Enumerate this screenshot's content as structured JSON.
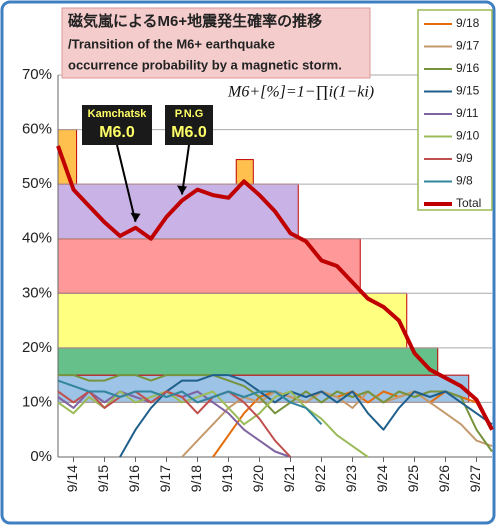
{
  "chart_data": {
    "type": "line",
    "title": "磁気嵐によるM6+地震発生確率の推移",
    "subtitle": [
      "/Transition of the M6+ earthquake",
      "occurrence probability by a magnetic storm."
    ],
    "formula": "M6+[%]=1−∏i(1−ki)",
    "annotations": [
      {
        "label": "Kamchatsk",
        "magnitude": "M6.0",
        "at": 5
      },
      {
        "label": "P.N.G",
        "magnitude": "M6.0",
        "at": 8
      }
    ],
    "categories": [
      null,
      "9/14",
      null,
      "9/15",
      null,
      "9/16",
      null,
      "9/17",
      null,
      "9/18",
      null,
      "9/19",
      null,
      "9/20",
      null,
      "9/21",
      null,
      "9/22",
      null,
      "9/23",
      null,
      "9/24",
      null,
      "9/25",
      null,
      "9/26",
      null,
      "9/27",
      null
    ],
    "ylim": [
      0,
      70
    ],
    "yticks": [
      {
        "value": 0,
        "label": "0%"
      },
      {
        "value": 10,
        "label": "10%"
      },
      {
        "value": 20,
        "label": "20%"
      },
      {
        "value": 30,
        "label": "30%"
      },
      {
        "value": 40,
        "label": "40%"
      },
      {
        "value": 50,
        "label": "50%"
      },
      {
        "value": 60,
        "label": "60%"
      },
      {
        "value": 70,
        "label": "70%"
      }
    ],
    "bands": [
      {
        "top": 15,
        "bottom": 10,
        "end": 26.5,
        "color": "#9dc3e6"
      },
      {
        "top": 20,
        "bottom": 15,
        "end": 24.5,
        "color": "#66c08a"
      },
      {
        "top": 30,
        "bottom": 20,
        "end": 22.5,
        "color": "#ffff80"
      },
      {
        "top": 40,
        "bottom": 30,
        "end": 19.5,
        "color": "#ff9999"
      },
      {
        "top": 50,
        "bottom": 40,
        "end": 15.5,
        "color": "#c9b3e6"
      },
      {
        "top": 60,
        "bottom": 50,
        "end": 1.2,
        "color": "#ffc04d"
      },
      {
        "top": 54.5,
        "bottom": 50,
        "start": 11.5,
        "end": 12.6,
        "color": "#ffc04d"
      }
    ],
    "series": [
      {
        "name": "9/18",
        "color": "#e46c0a",
        "width": 2,
        "values": [
          null,
          null,
          null,
          null,
          null,
          null,
          null,
          null,
          null,
          null,
          0,
          4,
          8,
          11,
          12,
          11,
          10,
          12,
          11,
          12,
          10,
          12,
          11,
          12,
          10,
          12,
          11,
          10,
          5
        ]
      },
      {
        "name": "9/17",
        "color": "#c49a6c",
        "width": 2,
        "values": [
          null,
          null,
          null,
          null,
          null,
          null,
          null,
          null,
          0,
          3,
          6,
          9,
          11,
          10,
          12,
          11,
          10,
          12,
          11,
          9,
          12,
          10,
          11,
          12,
          10,
          8,
          6,
          3,
          2
        ]
      },
      {
        "name": "9/16",
        "color": "#77933c",
        "width": 2,
        "values": [
          15,
          15,
          14,
          14,
          15,
          15,
          14,
          15,
          15,
          15,
          15,
          14,
          13,
          11,
          8,
          10,
          12,
          10,
          12,
          11,
          12,
          10,
          12,
          11,
          12,
          12,
          11,
          5,
          1
        ]
      },
      {
        "name": "9/15",
        "color": "#1f5f8b",
        "width": 2,
        "values": [
          null,
          null,
          null,
          null,
          0,
          5,
          9,
          12,
          14,
          14,
          15,
          15,
          14,
          12,
          10,
          12,
          11,
          12,
          10,
          12,
          8,
          5,
          9,
          12,
          11,
          12,
          10,
          8,
          6
        ]
      },
      {
        "name": "9/11",
        "color": "#8064a2",
        "width": 2,
        "values": [
          11,
          9,
          12,
          10,
          12,
          11,
          10,
          12,
          11,
          12,
          10,
          8,
          5,
          3,
          1,
          0,
          null,
          null,
          null,
          null,
          null,
          null,
          null,
          null,
          null,
          null,
          null,
          null,
          null
        ]
      },
      {
        "name": "9/10",
        "color": "#9bbb59",
        "width": 2,
        "values": [
          10,
          8,
          11,
          9,
          12,
          10,
          11,
          12,
          10,
          11,
          12,
          9,
          6,
          8,
          11,
          12,
          9,
          7,
          4,
          2,
          0,
          null,
          null,
          null,
          null,
          null,
          null,
          null,
          null
        ]
      },
      {
        "name": "9/9",
        "color": "#c0504d",
        "width": 2,
        "values": [
          12,
          10,
          12,
          9,
          11,
          12,
          10,
          12,
          11,
          8,
          11,
          12,
          10,
          7,
          3,
          0,
          null,
          null,
          null,
          null,
          null,
          null,
          null,
          null,
          null,
          null,
          null,
          null,
          null
        ]
      },
      {
        "name": "9/8",
        "color": "#31859c",
        "width": 2,
        "values": [
          14,
          13,
          12,
          12,
          11,
          12,
          12,
          11,
          12,
          10,
          11,
          12,
          11,
          12,
          12,
          10,
          9,
          6,
          null,
          null,
          null,
          null,
          null,
          null,
          null,
          null,
          null,
          null,
          null
        ]
      },
      {
        "name": "Total",
        "color": "#c00000",
        "width": 4,
        "values": [
          57,
          49,
          46,
          43,
          40.5,
          42,
          40,
          44,
          47,
          49,
          48,
          47.5,
          50.5,
          48,
          45,
          41,
          39.5,
          36,
          35,
          32,
          29,
          27.5,
          25,
          19,
          16,
          14.5,
          13,
          10.5,
          5
        ]
      }
    ],
    "grid": true
  }
}
